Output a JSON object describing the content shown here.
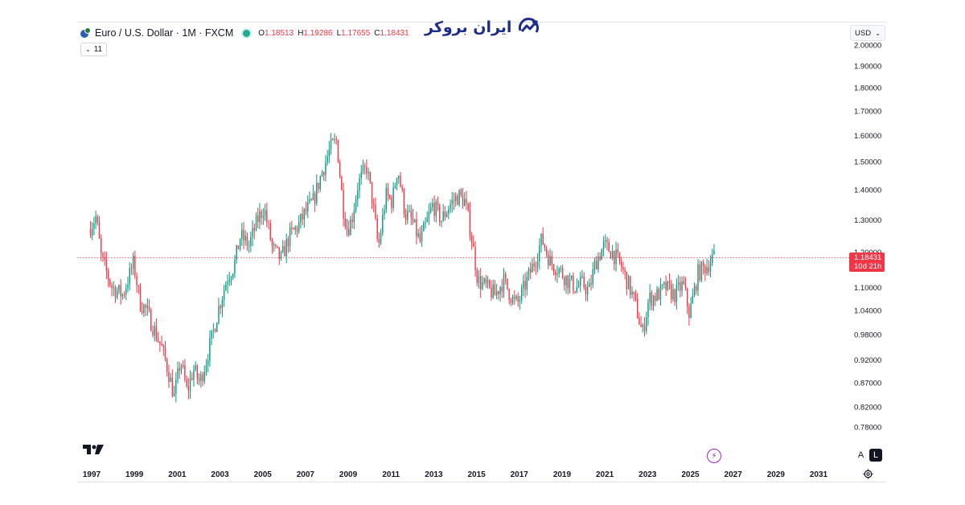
{
  "header": {
    "symbol_title": "Euro / U.S. Dollar · 1M · FXCM",
    "ohlc": [
      {
        "k": "O",
        "v": "1.18513"
      },
      {
        "k": "H",
        "v": "1.19286"
      },
      {
        "k": "L",
        "v": "1.17655"
      },
      {
        "k": "C",
        "v": "1.18431"
      }
    ],
    "indicators_count": "11",
    "market_status_color": "#22ab94"
  },
  "watermark": {
    "text": "ایران بروکر"
  },
  "currency_select": {
    "value": "USD"
  },
  "price_badge": {
    "price": "1.18431",
    "countdown": "10d 21h",
    "color": "#f23645"
  },
  "scale_buttons": {
    "auto": "A",
    "log": "L"
  },
  "icons": {
    "symbol": "euro-usd-flags-icon",
    "tradingview": "tradingview-logo-icon",
    "flash": "lightning-icon",
    "settings": "gear-icon",
    "chevron": "chevron-down-icon"
  },
  "chart_data": {
    "type": "candlestick",
    "symbol": "Euro / U.S. Dollar",
    "interval": "1M",
    "scale": "log",
    "grid": false,
    "up_color": "#089981",
    "down_color": "#f23645",
    "y_ticks": [
      "0.78000",
      "0.82000",
      "0.87000",
      "0.92000",
      "0.98000",
      "1.04000",
      "1.10000",
      "1.20000",
      "1.30000",
      "1.40000",
      "1.50000",
      "1.60000",
      "1.70000",
      "1.80000",
      "1.90000",
      "2.00000"
    ],
    "x_ticks": [
      "1997",
      "1999",
      "2001",
      "2003",
      "2005",
      "2007",
      "2009",
      "2011",
      "2013",
      "2015",
      "2017",
      "2019",
      "2021",
      "2023",
      "2025",
      "2027",
      "2029",
      "2031"
    ],
    "last_price": 1.18431,
    "price_series": {
      "x": [
        1996.9,
        1997.25,
        1997.5,
        1998.0,
        1998.5,
        1999.0,
        1999.3,
        1999.6,
        1999.9,
        2000.3,
        2000.6,
        2000.9,
        2001.2,
        2001.5,
        2001.8,
        2002.1,
        2002.4,
        2002.7,
        2003.0,
        2003.4,
        2003.7,
        2004.0,
        2004.4,
        2004.8,
        2005.1,
        2005.5,
        2005.9,
        2006.3,
        2006.7,
        2007.0,
        2007.4,
        2007.8,
        2008.2,
        2008.5,
        2008.8,
        2009.0,
        2009.2,
        2009.5,
        2009.9,
        2010.2,
        2010.45,
        2010.8,
        2011.1,
        2011.35,
        2011.7,
        2012.0,
        2012.4,
        2012.7,
        2013.0,
        2013.4,
        2013.8,
        2014.2,
        2014.5,
        2014.8,
        2015.1,
        2015.5,
        2015.9,
        2016.3,
        2016.8,
        2017.0,
        2017.4,
        2017.8,
        2018.1,
        2018.5,
        2018.9,
        2019.3,
        2019.7,
        2020.0,
        2020.3,
        2020.6,
        2021.0,
        2021.4,
        2021.8,
        2022.2,
        2022.5,
        2022.8,
        2023.1,
        2023.5,
        2023.9,
        2024.3,
        2024.7,
        2025.0,
        2025.4,
        2025.8,
        2026.1
      ],
      "close": [
        1.27,
        1.31,
        1.18,
        1.1,
        1.08,
        1.17,
        1.06,
        1.04,
        1.0,
        0.95,
        0.9,
        0.84,
        0.92,
        0.85,
        0.9,
        0.87,
        0.92,
        0.98,
        1.05,
        1.13,
        1.16,
        1.25,
        1.22,
        1.3,
        1.34,
        1.21,
        1.18,
        1.25,
        1.28,
        1.32,
        1.36,
        1.46,
        1.55,
        1.58,
        1.34,
        1.27,
        1.3,
        1.42,
        1.48,
        1.35,
        1.21,
        1.38,
        1.36,
        1.48,
        1.32,
        1.3,
        1.23,
        1.29,
        1.35,
        1.3,
        1.35,
        1.38,
        1.36,
        1.25,
        1.12,
        1.1,
        1.08,
        1.12,
        1.06,
        1.06,
        1.12,
        1.18,
        1.24,
        1.17,
        1.15,
        1.12,
        1.1,
        1.11,
        1.09,
        1.17,
        1.22,
        1.2,
        1.16,
        1.1,
        1.05,
        0.98,
        1.07,
        1.08,
        1.1,
        1.08,
        1.11,
        1.03,
        1.14,
        1.16,
        1.18431
      ]
    }
  }
}
